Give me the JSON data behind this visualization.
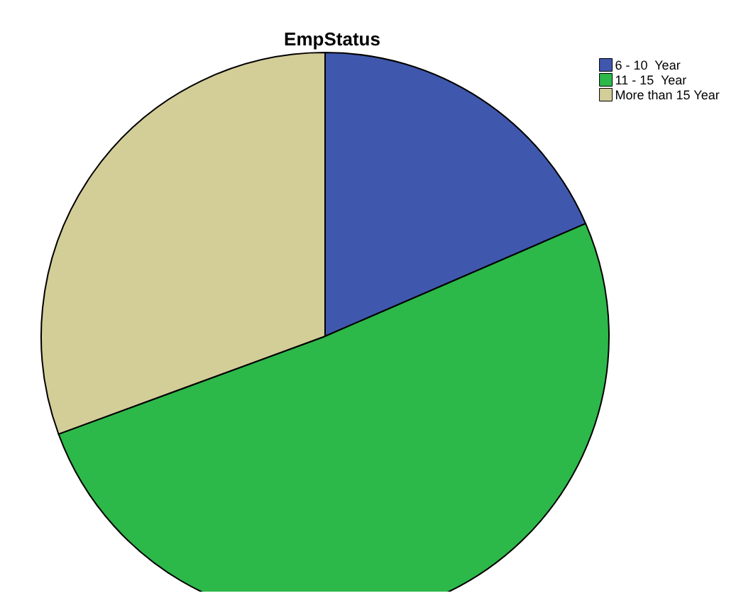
{
  "chart_data": {
    "type": "pie",
    "title": "EmpStatus",
    "categories": [
      "6 - 10  Year",
      "11 - 15  Year",
      "More than 15 Year"
    ],
    "values": [
      18.5,
      50.9,
      30.6
    ],
    "colors": [
      "#3f58ad",
      "#2db84a",
      "#d3cd98"
    ],
    "legend": "top right"
  }
}
